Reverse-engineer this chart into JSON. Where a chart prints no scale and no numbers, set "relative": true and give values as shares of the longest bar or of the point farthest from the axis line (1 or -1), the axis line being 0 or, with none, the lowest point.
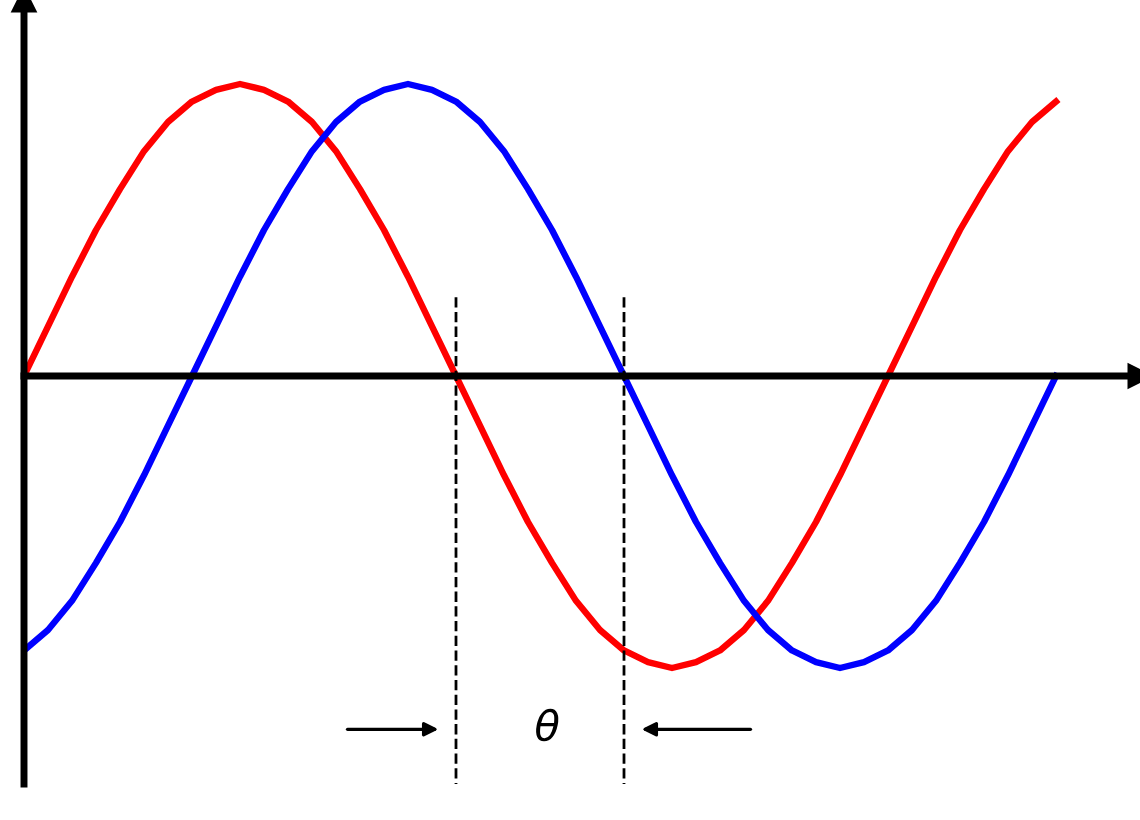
{
  "chart_data": {
    "type": "line",
    "relative": true,
    "categories": [
      null,
      null,
      null,
      null,
      null,
      null,
      null,
      null,
      null,
      null,
      null,
      null,
      null,
      null,
      null,
      null,
      null,
      null,
      null,
      null,
      null,
      null,
      null,
      null,
      null,
      null,
      null,
      null,
      null,
      null,
      null,
      null,
      null,
      null,
      null,
      null,
      null,
      null,
      null,
      null,
      null,
      null,
      null,
      null
    ],
    "series": [
      {
        "color": "#ff0000",
        "values": [
          0,
          0.17,
          0.34,
          0.5,
          0.64,
          0.77,
          0.87,
          0.94,
          0.98,
          1,
          0.98,
          0.94,
          0.87,
          0.77,
          0.64,
          0.5,
          0.34,
          0.17,
          0,
          -0.17,
          -0.34,
          -0.5,
          -0.64,
          -0.77,
          -0.87,
          -0.94,
          -0.98,
          -1,
          -0.98,
          -0.94,
          -0.87,
          -0.77,
          -0.64,
          -0.5,
          -0.34,
          -0.17,
          0,
          0.17,
          0.34,
          0.5,
          0.64,
          0.77,
          0.87,
          0.94
        ]
      },
      {
        "color": "#0000ff",
        "values": [
          -0.94,
          -0.87,
          -0.77,
          -0.64,
          -0.5,
          -0.34,
          -0.17,
          0,
          0.17,
          0.34,
          0.5,
          0.64,
          0.77,
          0.87,
          0.94,
          0.98,
          1,
          0.98,
          0.94,
          0.87,
          0.77,
          0.64,
          0.5,
          0.34,
          0.17,
          0,
          -0.17,
          -0.34,
          -0.5,
          -0.64,
          -0.77,
          -0.87,
          -0.94,
          -0.98,
          -1,
          -0.98,
          -0.94,
          -0.87,
          -0.77,
          -0.64,
          -0.5,
          -0.34,
          -0.17,
          0
        ]
      }
    ],
    "annotations": [
      "θ"
    ],
    "legend": false,
    "marker": "none",
    "line_style": "solid"
  }
}
